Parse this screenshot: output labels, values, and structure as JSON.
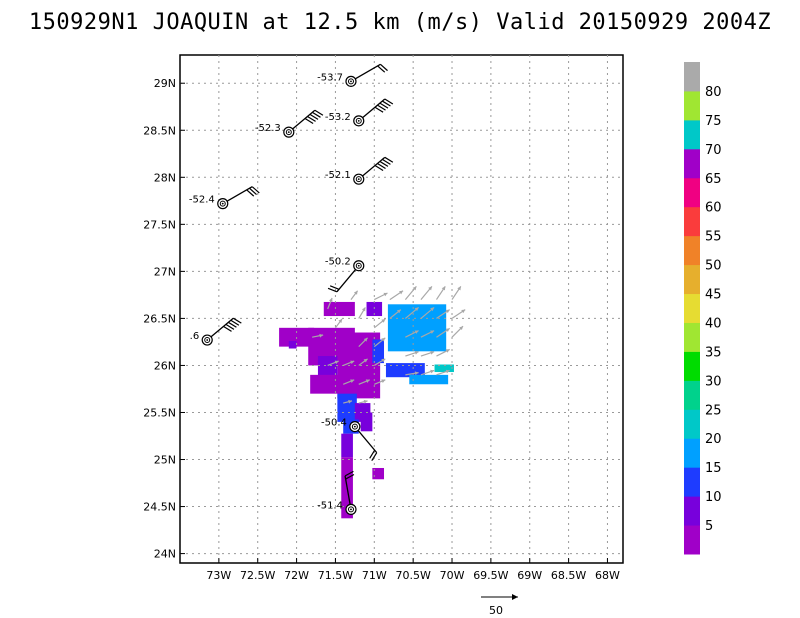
{
  "title": "150929N1 JOAQUIN at 12.5 km (m/s) Valid 20150929 2004Z",
  "chart_data": {
    "type": "heatmap",
    "title": "150929N1 JOAQUIN at 12.5 km (m/s) Valid 20150929 2004Z",
    "xlim": [
      -73.5,
      -67.8
    ],
    "ylim": [
      23.9,
      29.3
    ],
    "grid": true,
    "x_ticks": [
      {
        "v": -73.0,
        "label": "73W"
      },
      {
        "v": -72.5,
        "label": "72.5W"
      },
      {
        "v": -72.0,
        "label": "72W"
      },
      {
        "v": -71.5,
        "label": "71.5W"
      },
      {
        "v": -71.0,
        "label": "71W"
      },
      {
        "v": -70.5,
        "label": "70.5W"
      },
      {
        "v": -70.0,
        "label": "70W"
      },
      {
        "v": -69.5,
        "label": "69.5W"
      },
      {
        "v": -69.0,
        "label": "69W"
      },
      {
        "v": -68.5,
        "label": "68.5W"
      },
      {
        "v": -68.0,
        "label": "68W"
      }
    ],
    "y_ticks": [
      {
        "v": 24.0,
        "label": "24N"
      },
      {
        "v": 24.5,
        "label": "24.5N"
      },
      {
        "v": 25.0,
        "label": "25N"
      },
      {
        "v": 25.5,
        "label": "25.5N"
      },
      {
        "v": 26.0,
        "label": "26N"
      },
      {
        "v": 26.5,
        "label": "26.5N"
      },
      {
        "v": 27.0,
        "label": "27N"
      },
      {
        "v": 27.5,
        "label": "27.5N"
      },
      {
        "v": 28.0,
        "label": "28N"
      },
      {
        "v": 28.5,
        "label": "28.5N"
      },
      {
        "v": 29.0,
        "label": "29N"
      }
    ],
    "colorbar": {
      "levels": [
        "5",
        "10",
        "15",
        "20",
        "25",
        "30",
        "35",
        "40",
        "45",
        "50",
        "55",
        "60",
        "65",
        "70",
        "75",
        "80"
      ],
      "colors": [
        "#a000c8",
        "#7800dc",
        "#1e3cff",
        "#00a0ff",
        "#00c8c8",
        "#00d28c",
        "#00dc00",
        "#a0e632",
        "#e6dc32",
        "#e6af2d",
        "#f08228",
        "#fa3c3c",
        "#f00082",
        "#a000c8",
        "#00c8c8",
        "#a0e632",
        "#aaaaaa"
      ]
    },
    "cells": [
      {
        "lon": -71.45,
        "lat": 26.6,
        "w": 0.4,
        "h": 0.15,
        "c": 0
      },
      {
        "lon": -71.55,
        "lat": 26.2,
        "w": 0.6,
        "h": 0.4,
        "c": 0
      },
      {
        "lon": -72.0,
        "lat": 26.3,
        "w": 0.45,
        "h": 0.2,
        "c": 0
      },
      {
        "lon": -72.05,
        "lat": 26.22,
        "w": 0.1,
        "h": 0.08,
        "c": 1
      },
      {
        "lon": -71.2,
        "lat": 26.0,
        "w": 0.55,
        "h": 0.7,
        "c": 0
      },
      {
        "lon": -71.6,
        "lat": 25.95,
        "w": 0.25,
        "h": 0.3,
        "c": 1
      },
      {
        "lon": -71.55,
        "lat": 25.8,
        "w": 0.55,
        "h": 0.2,
        "c": 0
      },
      {
        "lon": -71.35,
        "lat": 25.55,
        "w": 0.25,
        "h": 0.3,
        "c": 2
      },
      {
        "lon": -71.15,
        "lat": 25.5,
        "w": 0.2,
        "h": 0.2,
        "c": 1
      },
      {
        "lon": -71.3,
        "lat": 25.35,
        "w": 0.2,
        "h": 0.15,
        "c": 2
      },
      {
        "lon": -71.1,
        "lat": 25.4,
        "w": 0.15,
        "h": 0.2,
        "c": 1
      },
      {
        "lon": -71.35,
        "lat": 24.7,
        "w": 0.15,
        "h": 0.65,
        "c": 0
      },
      {
        "lon": -71.35,
        "lat": 25.15,
        "w": 0.15,
        "h": 0.25,
        "c": 1
      },
      {
        "lon": -70.95,
        "lat": 24.85,
        "w": 0.15,
        "h": 0.12,
        "c": 0
      },
      {
        "lon": -71.0,
        "lat": 26.6,
        "w": 0.2,
        "h": 0.15,
        "c": 1
      },
      {
        "lon": -70.95,
        "lat": 26.15,
        "w": 0.15,
        "h": 0.25,
        "c": 2
      },
      {
        "lon": -70.45,
        "lat": 26.4,
        "w": 0.75,
        "h": 0.5,
        "c": 3
      },
      {
        "lon": -70.6,
        "lat": 25.95,
        "w": 0.5,
        "h": 0.15,
        "c": 2
      },
      {
        "lon": -70.3,
        "lat": 25.85,
        "w": 0.5,
        "h": 0.1,
        "c": 3
      },
      {
        "lon": -70.1,
        "lat": 25.97,
        "w": 0.25,
        "h": 0.08,
        "c": 4
      }
    ],
    "vectors": [
      {
        "lon": -71.0,
        "lat": 26.7,
        "u": 6,
        "v": 3
      },
      {
        "lon": -70.8,
        "lat": 26.7,
        "u": 6,
        "v": 4
      },
      {
        "lon": -70.6,
        "lat": 26.7,
        "u": 5,
        "v": 6
      },
      {
        "lon": -70.4,
        "lat": 26.7,
        "u": 5,
        "v": 6
      },
      {
        "lon": -70.2,
        "lat": 26.7,
        "u": 4,
        "v": 6
      },
      {
        "lon": -70.0,
        "lat": 26.7,
        "u": 4,
        "v": 6
      },
      {
        "lon": -70.6,
        "lat": 26.5,
        "u": 6,
        "v": 5
      },
      {
        "lon": -70.4,
        "lat": 26.5,
        "u": 6,
        "v": 5
      },
      {
        "lon": -70.2,
        "lat": 26.5,
        "u": 6,
        "v": 4
      },
      {
        "lon": -70.0,
        "lat": 26.5,
        "u": 6,
        "v": 4
      },
      {
        "lon": -70.6,
        "lat": 26.3,
        "u": 6,
        "v": 3
      },
      {
        "lon": -70.4,
        "lat": 26.3,
        "u": 6,
        "v": 3
      },
      {
        "lon": -70.2,
        "lat": 26.3,
        "u": 6,
        "v": 4
      },
      {
        "lon": -70.0,
        "lat": 26.3,
        "u": 5,
        "v": 5
      },
      {
        "lon": -70.6,
        "lat": 26.1,
        "u": 6,
        "v": 2
      },
      {
        "lon": -70.4,
        "lat": 26.1,
        "u": 6,
        "v": 2
      },
      {
        "lon": -70.2,
        "lat": 26.1,
        "u": 6,
        "v": 3
      },
      {
        "lon": -70.6,
        "lat": 25.9,
        "u": 6,
        "v": 1
      },
      {
        "lon": -70.4,
        "lat": 25.9,
        "u": 6,
        "v": 2
      },
      {
        "lon": -70.2,
        "lat": 25.9,
        "u": 6,
        "v": 2
      },
      {
        "lon": -71.2,
        "lat": 26.5,
        "u": 3,
        "v": 5
      },
      {
        "lon": -71.0,
        "lat": 26.4,
        "u": 5,
        "v": 4
      },
      {
        "lon": -71.2,
        "lat": 26.2,
        "u": 4,
        "v": 4
      },
      {
        "lon": -71.0,
        "lat": 26.2,
        "u": 5,
        "v": 4
      },
      {
        "lon": -71.2,
        "lat": 26.0,
        "u": 4,
        "v": 3
      },
      {
        "lon": -71.0,
        "lat": 26.0,
        "u": 5,
        "v": 3
      },
      {
        "lon": -71.4,
        "lat": 26.0,
        "u": 5,
        "v": 2
      },
      {
        "lon": -71.6,
        "lat": 26.0,
        "u": 5,
        "v": 2
      },
      {
        "lon": -71.4,
        "lat": 25.8,
        "u": 5,
        "v": 2
      },
      {
        "lon": -71.2,
        "lat": 25.8,
        "u": 5,
        "v": 2
      },
      {
        "lon": -71.0,
        "lat": 25.8,
        "u": 5,
        "v": 2
      },
      {
        "lon": -71.4,
        "lat": 25.6,
        "u": 4,
        "v": 1
      },
      {
        "lon": -71.2,
        "lat": 25.6,
        "u": 4,
        "v": 1
      },
      {
        "lon": -71.5,
        "lat": 26.4,
        "u": 3,
        "v": 4
      },
      {
        "lon": -71.8,
        "lat": 26.3,
        "u": 5,
        "v": 1
      },
      {
        "lon": -71.6,
        "lat": 26.6,
        "u": 2,
        "v": 5
      },
      {
        "lon": -71.3,
        "lat": 26.7,
        "u": 3,
        "v": 4
      },
      {
        "lon": -70.8,
        "lat": 26.5,
        "u": 5,
        "v": 4
      }
    ],
    "observations": [
      {
        "lon": -71.3,
        "lat": 29.02,
        "label": "-53.7",
        "dir": 60,
        "flags": 0,
        "barbs": 2
      },
      {
        "lon": -71.2,
        "lat": 28.6,
        "label": "-53.2",
        "dir": 50,
        "flags": 0,
        "barbs": 5
      },
      {
        "lon": -72.1,
        "lat": 28.48,
        "label": "-52.3",
        "dir": 50,
        "flags": 0,
        "barbs": 5
      },
      {
        "lon": -71.2,
        "lat": 27.98,
        "label": "-52.1",
        "dir": 50,
        "flags": 0,
        "barbs": 5
      },
      {
        "lon": -72.95,
        "lat": 27.72,
        "label": "-52.4",
        "dir": 60,
        "flags": 0,
        "barbs": 3
      },
      {
        "lon": -71.2,
        "lat": 27.06,
        "label": "-50.2",
        "dir": 220,
        "flags": 0,
        "barbs": 2
      },
      {
        "lon": -73.15,
        "lat": 26.27,
        "label": ".6",
        "dir": 50,
        "flags": 0,
        "barbs": 5
      },
      {
        "lon": -71.25,
        "lat": 25.35,
        "label": "-50.4",
        "dir": 140,
        "flags": 0,
        "barbs": 2
      },
      {
        "lon": -71.3,
        "lat": 24.47,
        "label": "-51.4",
        "dir": 350,
        "flags": 0,
        "barbs": 2
      }
    ],
    "reference_vector": {
      "label": "50"
    }
  }
}
